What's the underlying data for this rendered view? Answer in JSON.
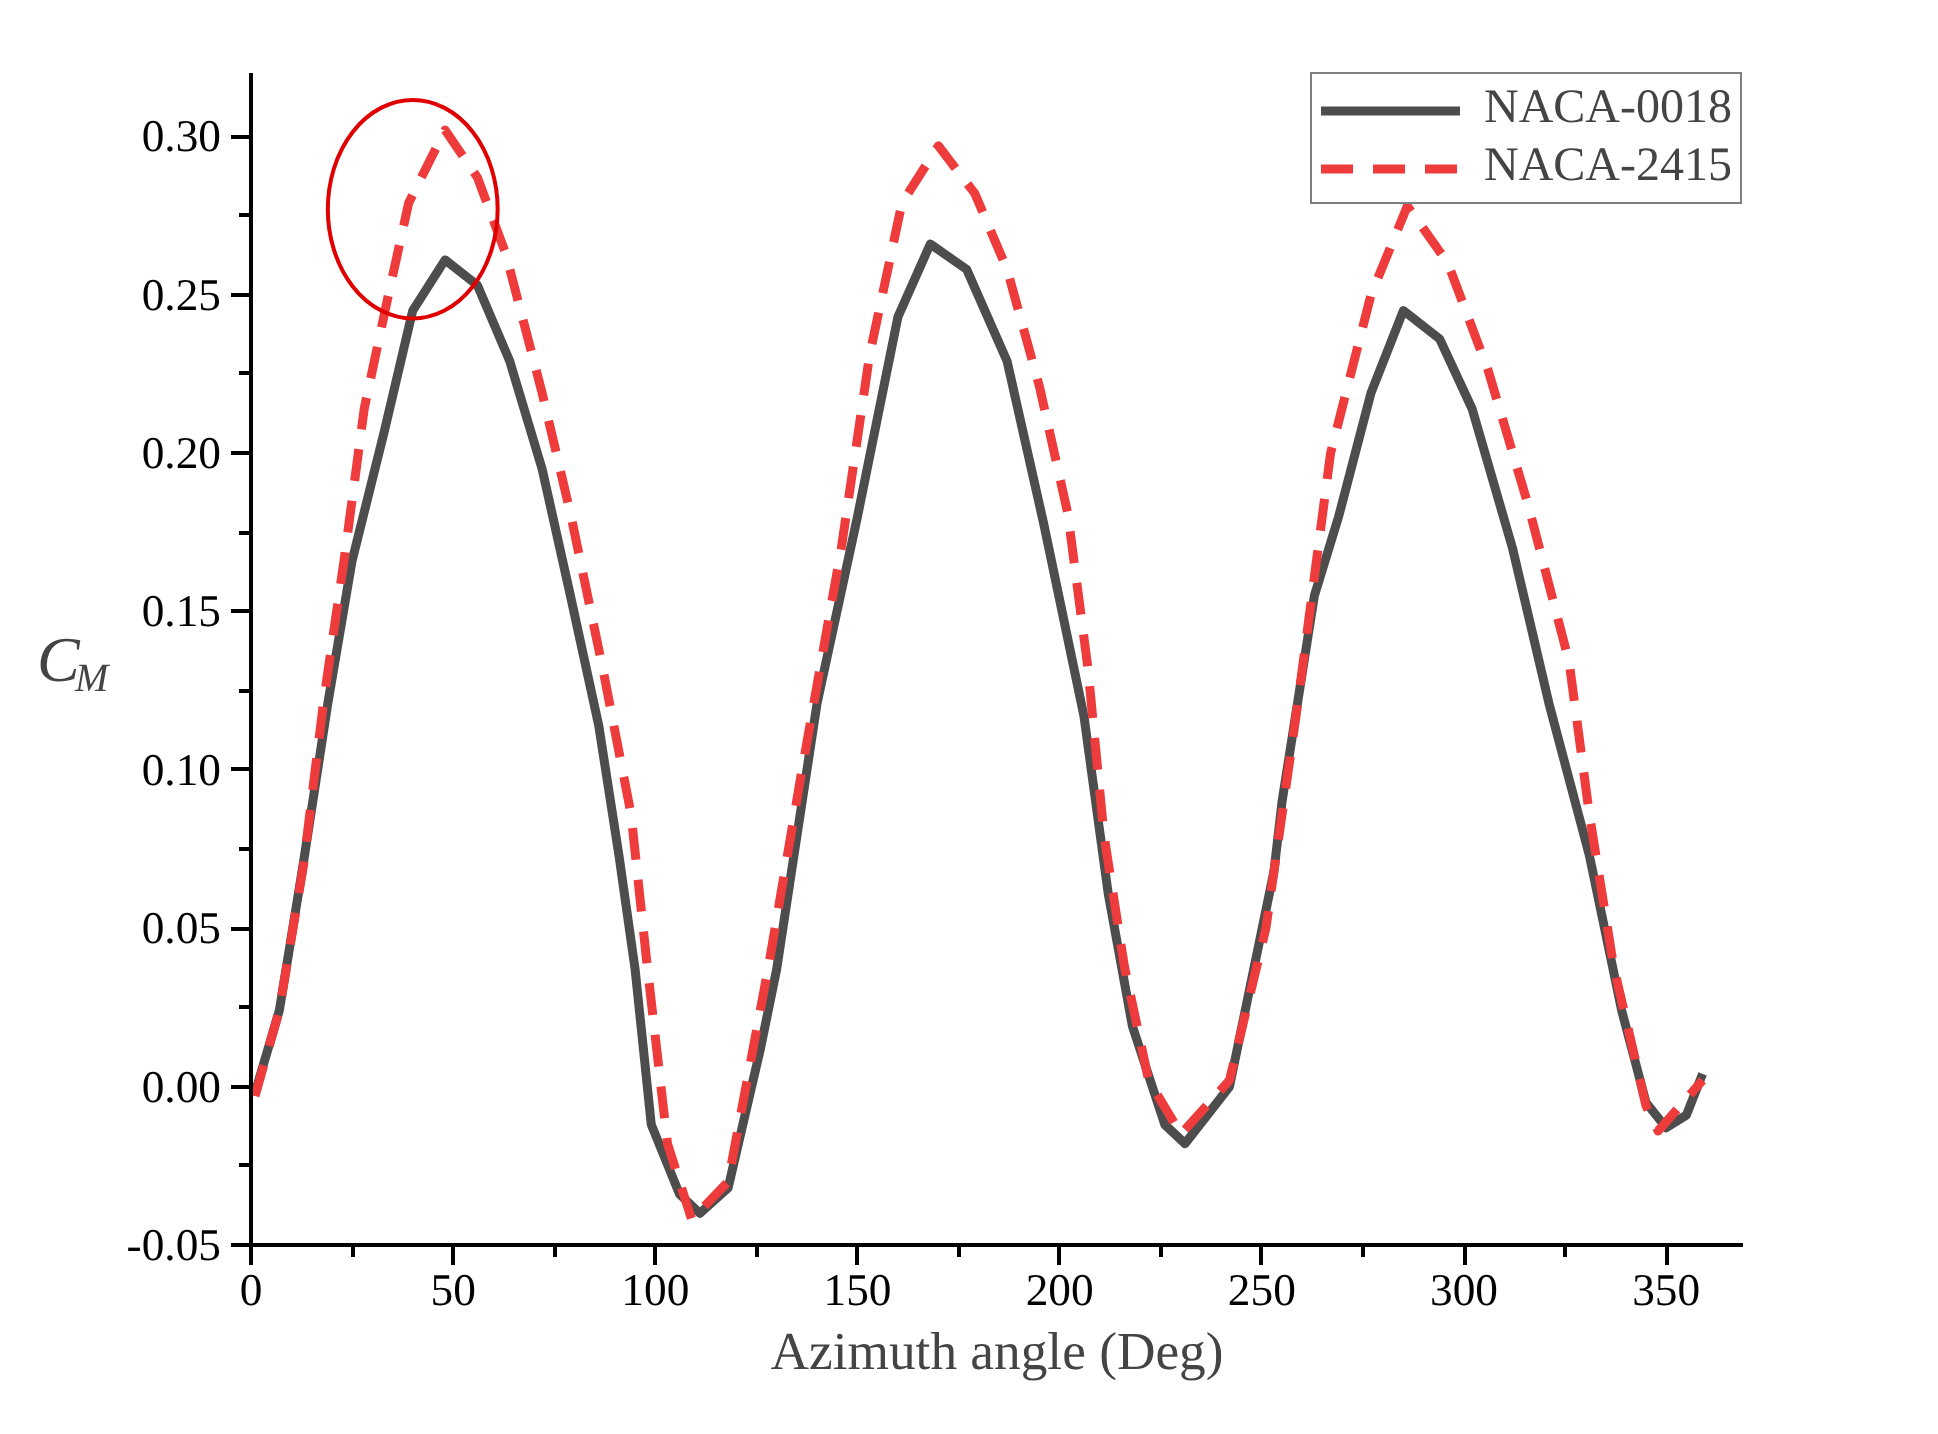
{
  "chart_data": {
    "type": "line",
    "xlabel": "Azimuth angle (Deg)",
    "ylabel": "C$_{M}$",
    "xlim": [
      0,
      369
    ],
    "ylim": [
      -0.05,
      0.32
    ],
    "xticks": [
      0,
      50,
      100,
      150,
      200,
      250,
      300,
      350
    ],
    "yticks": [
      {
        "value": -0.05,
        "label": "-0.05"
      },
      {
        "value": 0,
        "label": "0.00"
      },
      {
        "value": 0.05,
        "label": "0.05"
      },
      {
        "value": 0.1,
        "label": "0.10"
      },
      {
        "value": 0.15,
        "label": "0.15"
      },
      {
        "value": 0.2,
        "label": "0.20"
      },
      {
        "value": 0.25,
        "label": "0.25"
      },
      {
        "value": 0.3,
        "label": "0.30"
      }
    ],
    "grid": false,
    "legend": "top right",
    "marker": "none",
    "series": [
      {
        "name": "NACA-0018",
        "color": "#4d4d4d",
        "line_style": "solid",
        "x": [
          1,
          7,
          13,
          19,
          25,
          33,
          40,
          48,
          56,
          64,
          72,
          79,
          86,
          91,
          95,
          99,
          106,
          111,
          118,
          126,
          130,
          140,
          150,
          160,
          168,
          177,
          187,
          196,
          206,
          212,
          218,
          226,
          231,
          242,
          253,
          255,
          263,
          269,
          277,
          285,
          294,
          302,
          312,
          321,
          331,
          339,
          345,
          350,
          355,
          359
        ],
        "values": [
          -0.002,
          0.024,
          0.071,
          0.121,
          0.166,
          0.207,
          0.245,
          0.261,
          0.253,
          0.229,
          0.195,
          0.155,
          0.114,
          0.073,
          0.037,
          -0.012,
          -0.034,
          -0.04,
          -0.032,
          0.012,
          0.037,
          0.121,
          0.18,
          0.243,
          0.266,
          0.258,
          0.229,
          0.178,
          0.117,
          0.061,
          0.019,
          -0.012,
          -0.018,
          0.0,
          0.068,
          0.09,
          0.155,
          0.18,
          0.219,
          0.245,
          0.236,
          0.214,
          0.17,
          0.121,
          0.073,
          0.024,
          -0.005,
          -0.013,
          -0.009,
          0.004
        ]
      },
      {
        "name": "NACA-2415",
        "color": "#ee3b3b",
        "line_style": "dashed",
        "x": [
          1,
          7,
          13,
          18,
          23,
          28,
          34,
          39,
          48,
          56,
          63,
          72,
          79,
          87,
          94,
          98,
          103,
          109,
          118,
          128,
          136,
          146,
          153,
          161,
          170,
          179,
          187,
          195,
          202,
          207,
          211,
          216,
          222,
          230,
          242,
          251,
          259,
          267,
          277,
          286,
          296,
          306,
          316,
          326,
          331,
          337,
          345,
          348,
          359
        ],
        "values": [
          -0.003,
          0.024,
          0.07,
          0.122,
          0.166,
          0.214,
          0.25,
          0.279,
          0.302,
          0.287,
          0.263,
          0.219,
          0.181,
          0.132,
          0.086,
          0.038,
          -0.018,
          -0.042,
          -0.03,
          0.038,
          0.098,
          0.17,
          0.231,
          0.279,
          0.297,
          0.282,
          0.258,
          0.221,
          0.181,
          0.132,
          0.079,
          0.038,
          0.002,
          -0.015,
          0.002,
          0.05,
          0.122,
          0.2,
          0.25,
          0.278,
          0.26,
          0.226,
          0.183,
          0.134,
          0.086,
          0.038,
          -0.006,
          -0.014,
          0.002
        ]
      }
    ]
  }
}
